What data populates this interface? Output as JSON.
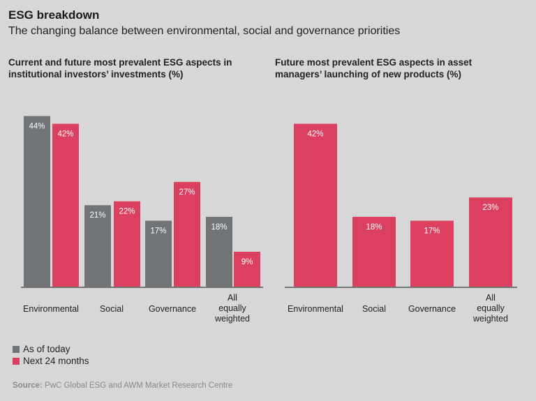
{
  "header": {
    "title": "ESG breakdown",
    "subtitle": "The changing balance between environmental, social and governance priorities"
  },
  "legend": [
    {
      "label": "As of today",
      "color": "#717477"
    },
    {
      "label": "Next 24 months",
      "color": "#db4060"
    }
  ],
  "source": {
    "label": "Source:",
    "text": "PwC Global ESG and AWM Market Research Centre"
  },
  "chart_data": [
    {
      "type": "bar",
      "title": "Current and future most prevalent ESG aspects in institutional investors’ investments (%)",
      "categories": [
        "Environmental",
        "Social",
        "Governance",
        "All equally weighted"
      ],
      "series": [
        {
          "name": "As of today",
          "color": "#717477",
          "values": [
            44,
            21,
            17,
            18
          ]
        },
        {
          "name": "Next 24 months",
          "color": "#db4060",
          "values": [
            42,
            22,
            27,
            9
          ]
        }
      ],
      "data_labels": [
        [
          "44%",
          "21%",
          "17%",
          "18%"
        ],
        [
          "42%",
          "22%",
          "27%",
          "9%"
        ]
      ]
    },
    {
      "type": "bar",
      "title": "Future most prevalent ESG aspects in asset managers’ launching of new products (%)",
      "categories": [
        "Environmental",
        "Social",
        "Governance",
        "All equally weighted"
      ],
      "series": [
        {
          "color": "#db4060",
          "values": [
            42,
            18,
            17,
            23
          ]
        }
      ],
      "data_labels": [
        [
          "42%",
          "18%",
          "17%",
          "23%"
        ]
      ]
    }
  ]
}
